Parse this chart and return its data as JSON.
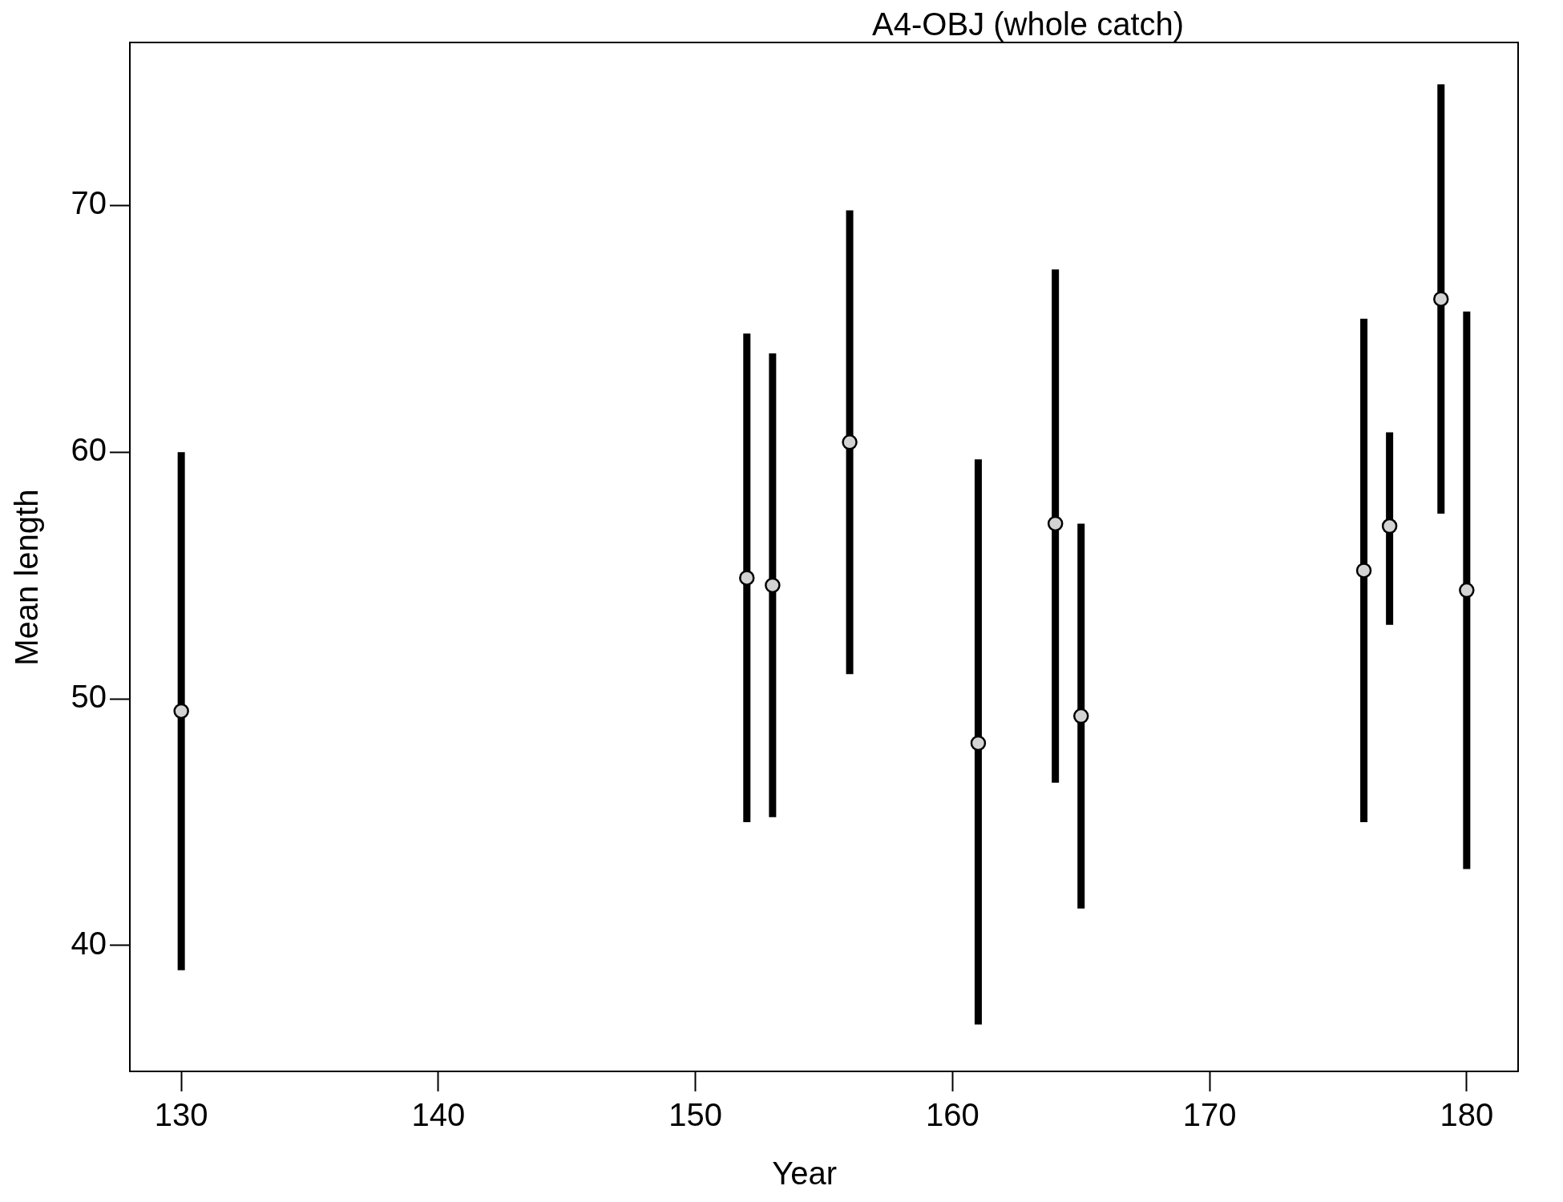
{
  "chart_data": {
    "type": "scatter",
    "title": "A4-OBJ (whole catch)",
    "xlabel": "Year",
    "ylabel": "Mean length",
    "x": [
      130,
      152,
      153,
      156,
      161,
      164,
      165,
      176,
      177,
      179,
      180
    ],
    "series": [
      {
        "color": "#d3d3d3",
        "values": [
          49.5,
          54.9,
          54.6,
          60.4,
          48.2,
          57.1,
          49.3,
          55.2,
          57.0,
          66.2,
          54.4
        ],
        "errors": [
          [
            39.0,
            60.0
          ],
          [
            45.0,
            64.8
          ],
          [
            45.2,
            64.0
          ],
          [
            51.0,
            69.8
          ],
          [
            36.8,
            59.7
          ],
          [
            46.6,
            67.4
          ],
          [
            41.5,
            57.1
          ],
          [
            45.0,
            65.4
          ],
          [
            53.0,
            60.8
          ],
          [
            57.5,
            74.9
          ],
          [
            43.1,
            65.7
          ]
        ]
      }
    ],
    "xlim": [
      128,
      182
    ],
    "ylim": [
      34.9,
      76.6
    ],
    "xticks": [
      130,
      140,
      150,
      160,
      170,
      180
    ],
    "yticks": [
      40,
      50,
      60,
      70
    ],
    "grid": false,
    "legend": false,
    "marker": "circle"
  }
}
